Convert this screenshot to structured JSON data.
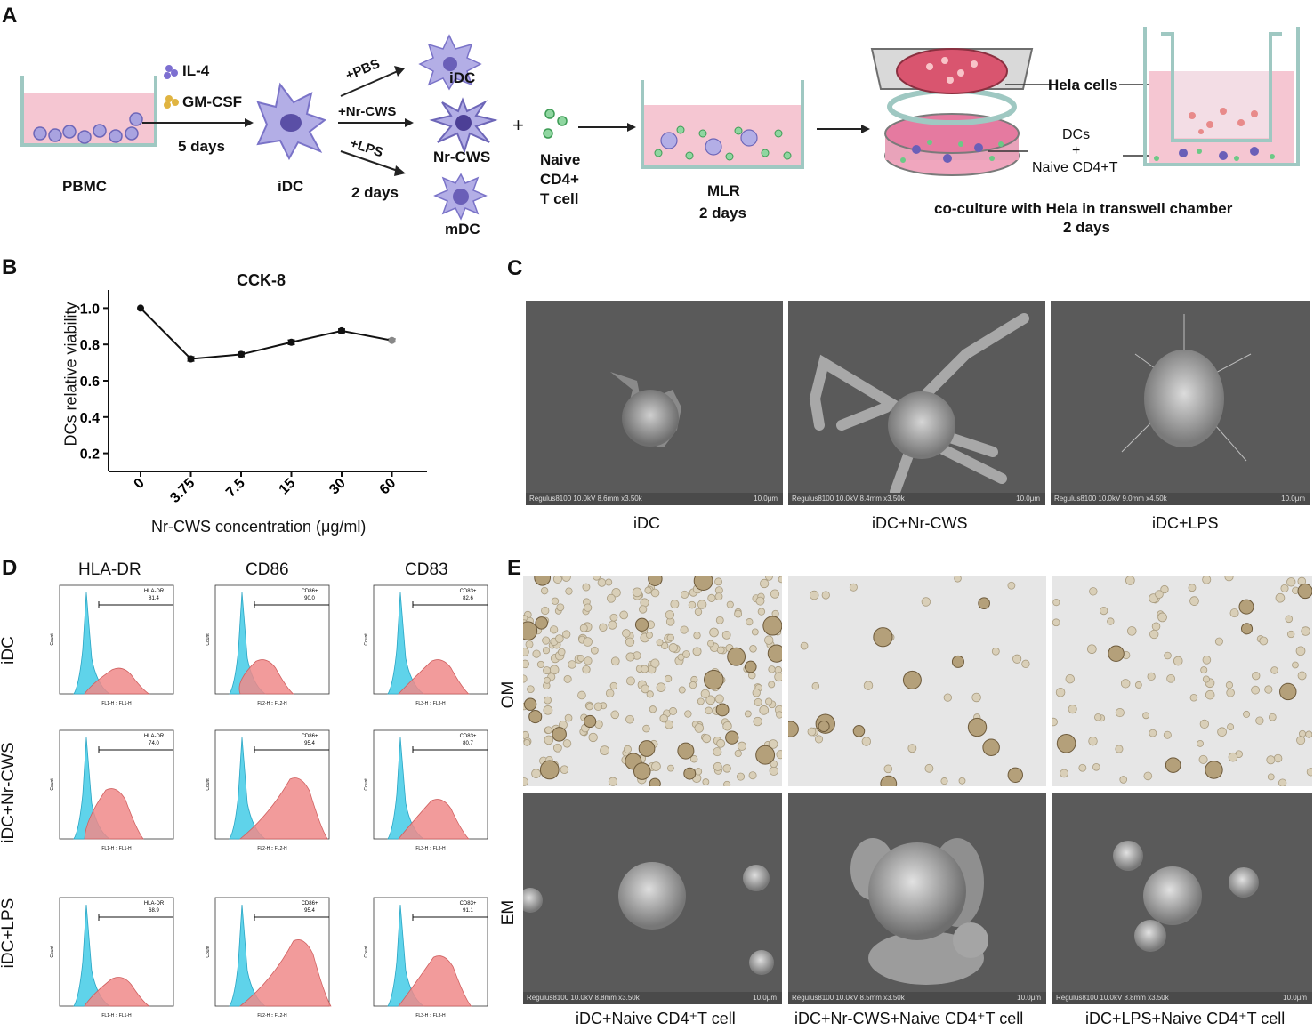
{
  "panels": {
    "A": "A",
    "B": "B",
    "C": "C",
    "D": "D",
    "E": "E"
  },
  "panelA": {
    "pbmc": "PBMC",
    "il4": "IL-4",
    "gmcsf": "GM-CSF",
    "five_days": "5 days",
    "idc_center": "iDC",
    "pbs": "+PBS",
    "nrcws_treat": "+Nr-CWS",
    "lps": "+LPS",
    "two_days": "2 days",
    "idc_out": "iDC",
    "nrcws_out": "Nr-CWS",
    "mdc_out": "mDC",
    "plus": "+",
    "naive_line1": "Naive",
    "naive_line2": "CD4+",
    "naive_line3": "T cell",
    "mlr": "MLR",
    "mlr_days": "2 days",
    "hela": "Hela cells",
    "dcs": "DCs",
    "dcs_plus": "+",
    "naive_cd4t": "Naive CD4+T",
    "coculture": "co-culture with Hela in transwell chamber",
    "coculture_days": "2 days",
    "colors": {
      "medium": "#f5c6d2",
      "cell": "#9b94d6",
      "tcell": "#4db56a",
      "hela": "#e88a8a"
    }
  },
  "chart_data": {
    "type": "line",
    "title": "CCK-8",
    "xlabel": "Nr-CWS concentration (μg/ml)",
    "ylabel": "DCs relative viability",
    "categories": [
      "0",
      "3.75",
      "7.5",
      "15",
      "30",
      "60"
    ],
    "series": [
      {
        "values": [
          1.0,
          0.72,
          0.745,
          0.812,
          0.875,
          0.822
        ],
        "errors": [
          0,
          0.012,
          0.012,
          0.012,
          0.01,
          0.008
        ]
      }
    ],
    "yticks": [
      "1.0",
      "0.8",
      "0.6",
      "0.4",
      "0.2"
    ],
    "ylim": [
      0.1,
      1.1
    ],
    "grid": false
  },
  "panelC": {
    "labels": [
      "iDC",
      "iDC+Nr-CWS",
      "iDC+LPS"
    ],
    "meta": [
      "Regulus8100 10.0kV 8.6mm x3.50k",
      "Regulus8100 10.0kV 8.4mm x3.50k",
      "Regulus8100 10.0kV 9.0mm x4.50k"
    ],
    "scale": "10.0μm"
  },
  "panelD": {
    "markers": [
      "HLA-DR",
      "CD86",
      "CD83"
    ],
    "rows": [
      "iDC",
      "iDC+Nr-CWS",
      "iDC+LPS"
    ],
    "gates": [
      [
        "HLA-DR",
        "CD86+",
        "CD83+"
      ],
      [
        "HLA-DR",
        "CD86+",
        "CD83+"
      ],
      [
        "HLA-DR",
        "CD86+",
        "CD83+"
      ]
    ],
    "percents": [
      [
        "81.4",
        "90.0",
        "82.6"
      ],
      [
        "74.0",
        "95.4",
        "80.7"
      ],
      [
        "68.9",
        "95.4",
        "91.1"
      ]
    ],
    "xaxis": [
      [
        "FL1-H :: FL1-H",
        "FL2-H :: FL2-H",
        "FL3-H :: FL3-H"
      ],
      [
        "FL1-H :: FL1-H",
        "FL2-H :: FL2-H",
        "FL3-H :: FL3-H"
      ],
      [
        "FL1-H :: FL1-H",
        "FL2-H :: FL2-H",
        "FL3-H :: FL3-H"
      ]
    ],
    "count_label": "Count",
    "colors": {
      "control": "#5fd3ea",
      "sample": "#f08a8a"
    }
  },
  "panelE": {
    "row_labels": [
      "OM",
      "EM"
    ],
    "em_meta": [
      "Regulus8100 10.0kV 8.8mm x3.50k",
      "Regulus8100 10.0kV 8.5mm x3.50k",
      "Regulus8100 10.0kV 8.8mm x3.50k"
    ],
    "scale": "10.0μm",
    "labels": [
      "iDC+Naive CD4⁺T cell",
      "iDC+Nr-CWS+Naive CD4⁺T cell",
      "iDC+LPS+Naive CD4⁺T cell"
    ]
  }
}
